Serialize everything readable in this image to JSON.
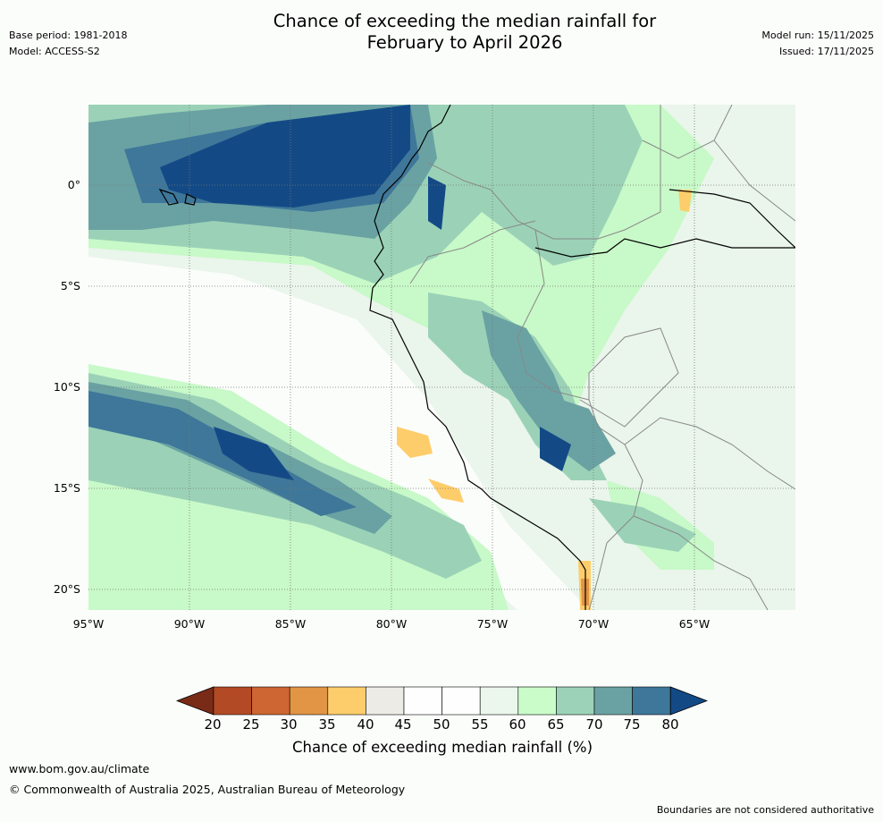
{
  "header": {
    "title_line1": "Chance of exceeding the median rainfall for",
    "title_line2": "February to April 2026",
    "base_period": "Base period: 1981-2018",
    "model": "Model: ACCESS-S2",
    "model_run": "Model run: 15/11/2025",
    "issued": "Issued: 17/11/2025"
  },
  "map": {
    "latitude_labels": [
      "0°",
      "5°S",
      "10°S",
      "15°S",
      "20°S"
    ],
    "longitude_labels": [
      "95°W",
      "90°W",
      "85°W",
      "80°W",
      "75°W",
      "70°W",
      "65°W"
    ]
  },
  "colorbar": {
    "title": "Chance of exceeding median rainfall (%)",
    "ticks": [
      "20",
      "25",
      "30",
      "35",
      "40",
      "45",
      "50",
      "55",
      "60",
      "65",
      "70",
      "75",
      "80"
    ],
    "colors": {
      "below_20": "#7a2b17",
      "20_25": "#b34a26",
      "25_30": "#cd6632",
      "30_35": "#e19545",
      "35_40": "#fecd6b",
      "40_45": "#ecebe6",
      "45_50": "#fdfefd",
      "50_55": "#fdfefd",
      "55_60": "#ebf6ec",
      "60_65": "#c9fcc9",
      "65_70": "#9cd3b8",
      "70_75": "#6aa2a3",
      "75_80": "#3e7799",
      "above_80": "#134a86"
    }
  },
  "footer": {
    "url": "www.bom.gov.au/climate",
    "copyright": "© Commonwealth of Australia 2025, Australian Bureau of Meteorology",
    "disclaimer": "Boundaries are not considered authoritative"
  }
}
